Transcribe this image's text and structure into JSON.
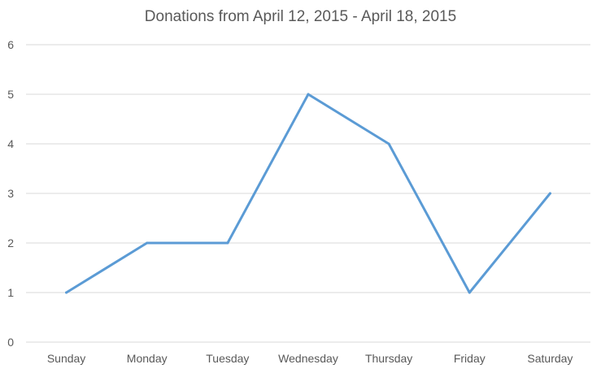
{
  "chart_data": {
    "type": "line",
    "title": "Donations from April 12, 2015 - April 18, 2015",
    "xlabel": "",
    "ylabel": "",
    "categories": [
      "Sunday",
      "Monday",
      "Tuesday",
      "Wednesday",
      "Thursday",
      "Friday",
      "Saturday"
    ],
    "series": [
      {
        "values": [
          1,
          2,
          2,
          5,
          4,
          1,
          3
        ]
      }
    ],
    "ylim": [
      0,
      6
    ],
    "yticks": [
      0,
      1,
      2,
      3,
      4,
      5,
      6
    ],
    "grid": true,
    "legend": "none",
    "colors": {
      "series": "#5b9bd5",
      "grid": "#d9d9d9",
      "text": "#595959"
    }
  }
}
